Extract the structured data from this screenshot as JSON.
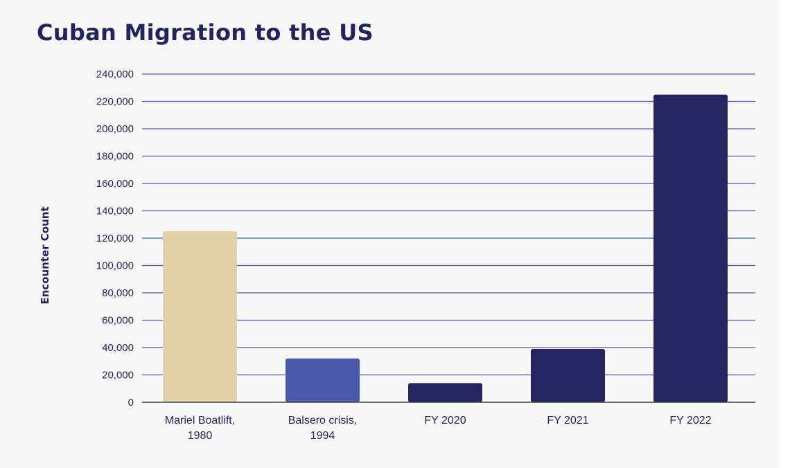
{
  "chart_data": {
    "type": "bar",
    "title": "Cuban Migration to the US",
    "xlabel": "",
    "ylabel": "Encounter Count",
    "categories": [
      [
        "Mariel Boatlift,",
        "1980"
      ],
      [
        "Balsero crisis,",
        "1994"
      ],
      [
        "FY 2020"
      ],
      [
        "FY 2021"
      ],
      [
        "FY 2022"
      ]
    ],
    "values": [
      125000,
      32000,
      14000,
      39000,
      225000
    ],
    "colors": [
      "#e3d0a7",
      "#4a5aa8",
      "#24245e",
      "#24245e",
      "#24245e"
    ],
    "ylim": [
      0,
      240000
    ],
    "yticks": [
      0,
      20000,
      40000,
      60000,
      80000,
      100000,
      120000,
      140000,
      160000,
      180000,
      200000,
      220000,
      240000
    ],
    "ytick_labels": [
      "0",
      "20,000",
      "40,000",
      "60,000",
      "80,000",
      "100,000",
      "120,000",
      "140,000",
      "160,000",
      "180,000",
      "200,000",
      "220,000",
      "240,000"
    ],
    "grid": true,
    "grid_color": "#4a5aa8",
    "text_color": "#23235e",
    "legend": "none"
  }
}
